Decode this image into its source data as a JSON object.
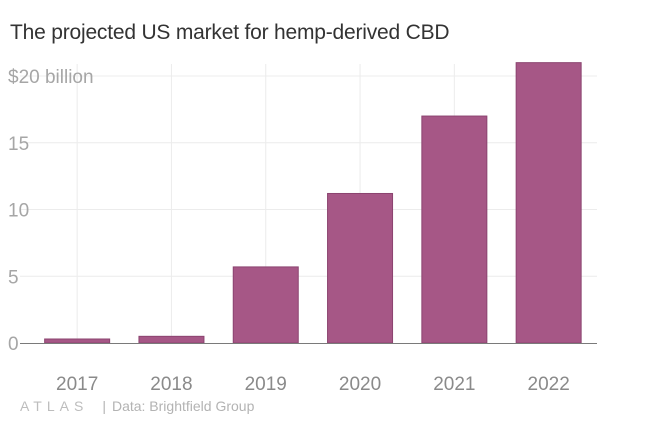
{
  "chart_data": {
    "type": "bar",
    "title": "The projected US market for hemp-derived CBD",
    "categories": [
      "2017",
      "2018",
      "2019",
      "2020",
      "2021",
      "2022"
    ],
    "values": [
      0.3,
      0.5,
      5.7,
      11.2,
      17.0,
      21.0
    ],
    "y_ticks": [
      "0",
      "5",
      "10",
      "15",
      "$20 billion"
    ],
    "y_tick_values": [
      0,
      5,
      10,
      15,
      20
    ],
    "ylim": [
      0,
      21
    ],
    "xlabel": "",
    "ylabel": "",
    "grid": true,
    "bar_color": "#a65786",
    "bar_edge_color": "#8c4470"
  },
  "footer": {
    "logo": "ATLAS",
    "separator": "|",
    "source": "Data: Brightfield Group"
  }
}
